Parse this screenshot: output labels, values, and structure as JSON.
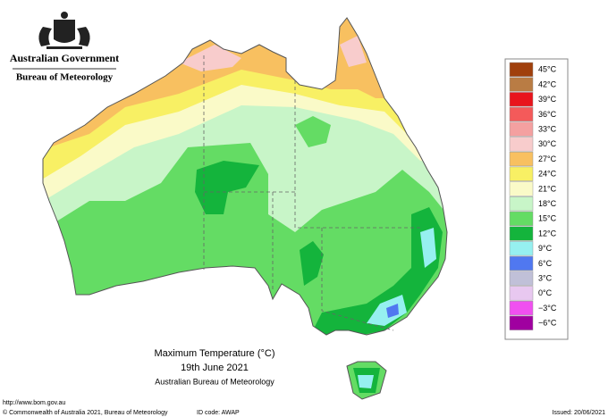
{
  "header": {
    "government": "Australian Government",
    "bureau": "Bureau of Meteorology"
  },
  "legend": [
    {
      "label": "45°C",
      "color": "#a0400c"
    },
    {
      "label": "42°C",
      "color": "#b97c44"
    },
    {
      "label": "39°C",
      "color": "#e8141c"
    },
    {
      "label": "36°C",
      "color": "#f45a5a"
    },
    {
      "label": "33°C",
      "color": "#f4a0a0"
    },
    {
      "label": "30°C",
      "color": "#f8cccc"
    },
    {
      "label": "27°C",
      "color": "#f8c060"
    },
    {
      "label": "24°C",
      "color": "#f8f064"
    },
    {
      "label": "21°C",
      "color": "#fafac8"
    },
    {
      "label": "18°C",
      "color": "#c8f5c8"
    },
    {
      "label": "15°C",
      "color": "#64dc64"
    },
    {
      "label": "12°C",
      "color": "#14b43c"
    },
    {
      "label": "9°C",
      "color": "#96f0f0"
    },
    {
      "label": "6°C",
      "color": "#5078f0"
    },
    {
      "label": "3°C",
      "color": "#c0c0d8"
    },
    {
      "label": "0°C",
      "color": "#e8c8f0"
    },
    {
      "label": "−3°C",
      "color": "#f050f0"
    },
    {
      "label": "−6°C",
      "color": "#a000a0"
    }
  ],
  "caption": {
    "title": "Maximum Temperature (°C)",
    "date": "19th June 2021",
    "source": "Australian Bureau of Meteorology"
  },
  "footer": {
    "url": "http://www.bom.gov.au",
    "copyright": "© Commonwealth of Australia 2021, Bureau of Meteorology",
    "id": "ID code: AWAP",
    "issued": "Issued: 20/06/2021"
  }
}
